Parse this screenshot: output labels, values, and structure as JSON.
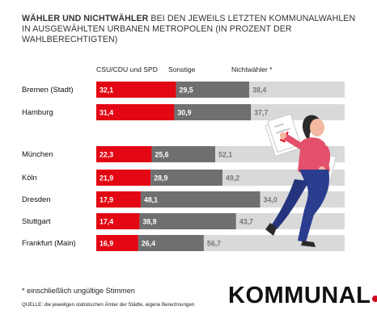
{
  "title": {
    "bold": "WÄHLER UND NICHTWÄHLER",
    "rest": " BEI DEN JEWEILS LETZTEN KOMMUNALWAHLEN IN AUSGEWÄHLTEN URBANEN METROPOLEN (IN PROZENT DER WAHLBERECHTIGTEN)"
  },
  "chart_data": {
    "type": "bar",
    "orientation": "horizontal",
    "stacked": true,
    "categories": [
      "Bremen (Stadt)",
      "Hamburg",
      "München",
      "Köln",
      "Dresden",
      "Stuttgart",
      "Frankfurt (Main)"
    ],
    "series": [
      {
        "name": "CSU/CDU und SPD",
        "color": "#e30613",
        "values": [
          32.1,
          31.4,
          22.3,
          21.9,
          17.9,
          17.4,
          16.9
        ],
        "labels": [
          "32,1",
          "31,4",
          "22,3",
          "21,9",
          "17,9",
          "17,4",
          "16,9"
        ]
      },
      {
        "name": "Sonstige",
        "color": "#6f6f6f",
        "values": [
          29.5,
          30.9,
          25.6,
          28.9,
          48.1,
          38.9,
          26.4
        ],
        "labels": [
          "29,5",
          "30,9",
          "25,6",
          "28,9",
          "48,1",
          "38,9",
          "26,4"
        ]
      },
      {
        "name": "Nichtwähler *",
        "color": "#d9d9d9",
        "values": [
          38.4,
          37.7,
          52.1,
          49.2,
          34.0,
          43.7,
          56.7
        ],
        "labels": [
          "38,4",
          "37,7",
          "52,1",
          "49,2",
          "34,0",
          "43,7",
          "56,7"
        ]
      }
    ],
    "xlim": [
      0,
      100
    ],
    "grid": false,
    "legend": "top"
  },
  "footnote": "* einschließlich ungültige Stimmen",
  "source": "QUELLE: die jeweiligen statistischen Ämter der Städte, eigene Berechnungen",
  "logo": "KOMMUNAL",
  "colors": {
    "accent": "#e30613",
    "other": "#6f6f6f",
    "nonvoter": "#d9d9d9"
  },
  "illustration": "woman-running-with-ballots"
}
